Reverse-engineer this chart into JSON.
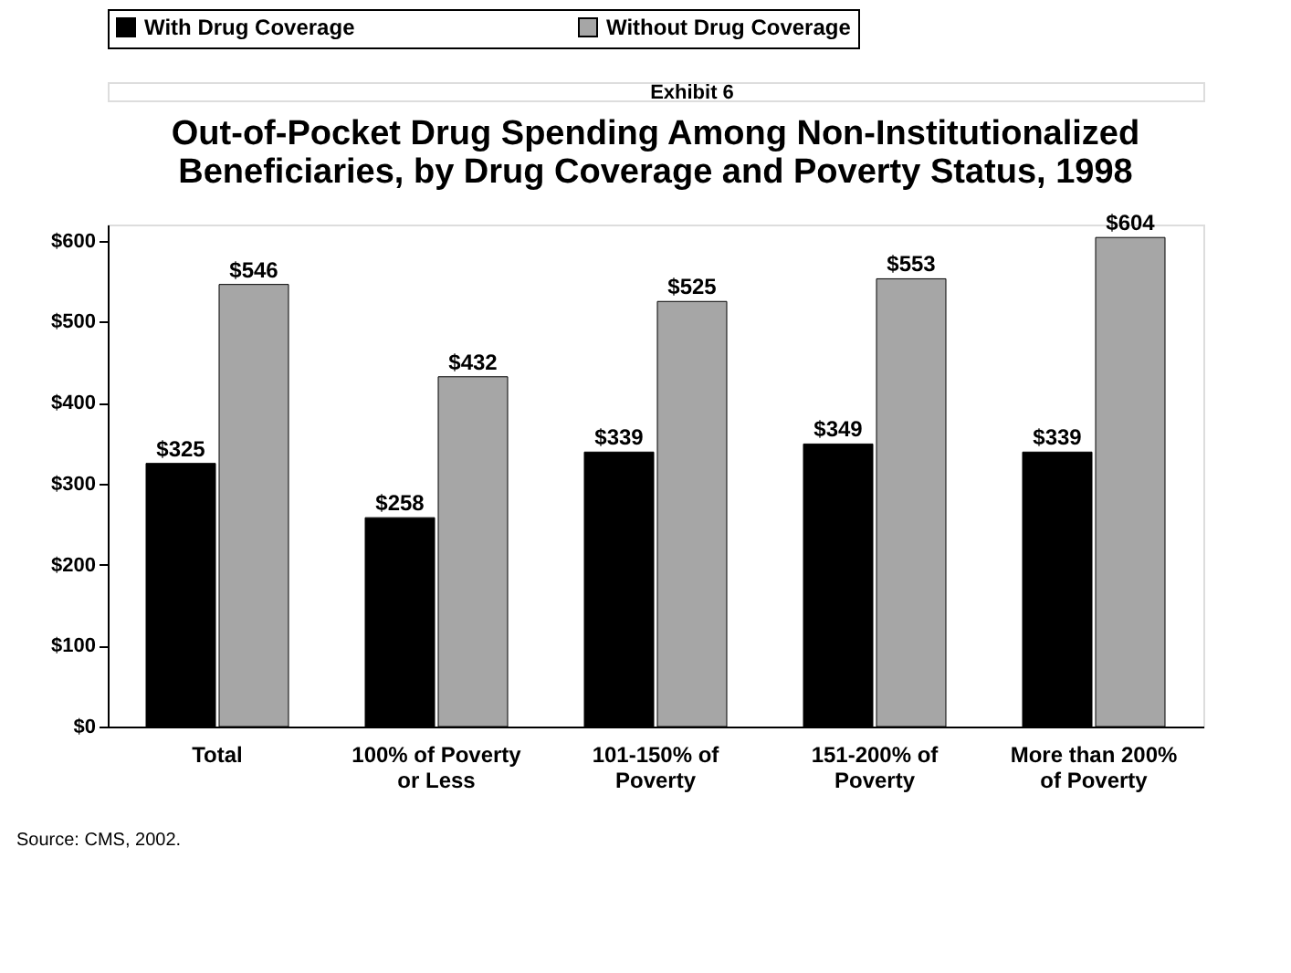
{
  "chart_data": {
    "type": "bar",
    "title": "Out-of-Pocket Drug Spending Among Non-Institutionalized\nBeneficiaries, by Drug Coverage and Poverty Status, 1998",
    "categories": [
      "Total",
      "100% of Poverty\nor Less",
      "101-150% of\nPoverty",
      "151-200% of\nPoverty",
      "More than 200%\nof Poverty"
    ],
    "series": [
      {
        "name": "With Drug Coverage",
        "color": "#000000",
        "values": [
          325,
          258,
          339,
          349,
          339
        ]
      },
      {
        "name": "Without Drug Coverage",
        "color": "#a6a6a6",
        "values": [
          546,
          432,
          525,
          553,
          604
        ]
      }
    ],
    "ylim": [
      0,
      620
    ],
    "yticks": [
      {
        "value": 0,
        "label": "$0"
      },
      {
        "value": 100,
        "label": "$100"
      },
      {
        "value": 200,
        "label": "$200"
      },
      {
        "value": 300,
        "label": "$300"
      },
      {
        "value": 400,
        "label": "$400"
      },
      {
        "value": 500,
        "label": "$500"
      },
      {
        "value": 600,
        "label": "$600"
      }
    ],
    "value_labels": [
      [
        "$325",
        "$258",
        "$339",
        "$349",
        "$339"
      ],
      [
        "$546",
        "$432",
        "$525",
        "$553",
        "$604"
      ]
    ],
    "grid": false,
    "legend": "top",
    "annotations": [
      "Exhibit 6",
      "Source:  CMS, 2002."
    ]
  }
}
